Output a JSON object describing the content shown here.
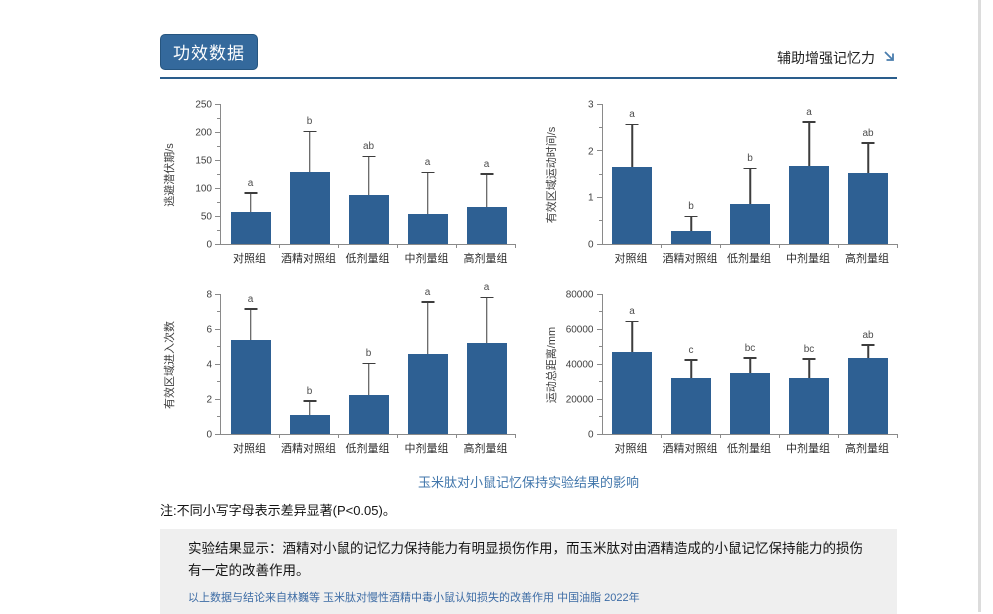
{
  "header": {
    "badge_label": "功效数据",
    "right_label": "辅助增强记忆力"
  },
  "chart_data": [
    {
      "type": "bar",
      "ylabel": "逃避潜伏期/s",
      "ylim": [
        0,
        250
      ],
      "yticks": [
        0,
        50,
        100,
        150,
        200,
        250
      ],
      "categories": [
        "对照组",
        "酒精对照组",
        "低剂量组",
        "中剂量组",
        "高剂量组"
      ],
      "values": [
        57,
        128,
        88,
        53,
        66
      ],
      "error_tops": [
        90,
        200,
        155,
        126,
        124
      ],
      "sig_letters": [
        "a",
        "b",
        "ab",
        "a",
        "a"
      ],
      "grid": false,
      "legend": "none"
    },
    {
      "type": "bar",
      "ylabel": "有效区域运动时间/s",
      "ylim": [
        0,
        3
      ],
      "yticks": [
        0,
        1,
        2,
        3
      ],
      "categories": [
        "对照组",
        "酒精对照组",
        "低剂量组",
        "中剂量组",
        "高剂量组"
      ],
      "values": [
        1.65,
        0.28,
        0.85,
        1.68,
        1.52
      ],
      "error_tops": [
        2.55,
        0.57,
        1.6,
        2.6,
        2.15
      ],
      "sig_letters": [
        "a",
        "b",
        "b",
        "a",
        "ab"
      ],
      "grid": false,
      "legend": "none"
    },
    {
      "type": "bar",
      "ylabel": "有效区域进入次数",
      "ylim": [
        0,
        8
      ],
      "yticks": [
        0,
        2,
        4,
        6,
        8
      ],
      "categories": [
        "对照组",
        "酒精对照组",
        "低剂量组",
        "中剂量组",
        "高剂量组"
      ],
      "values": [
        5.4,
        1.1,
        2.25,
        4.6,
        5.2
      ],
      "error_tops": [
        7.1,
        1.85,
        4.0,
        7.5,
        7.75
      ],
      "sig_letters": [
        "a",
        "b",
        "b",
        "a",
        "a"
      ],
      "grid": false,
      "legend": "none"
    },
    {
      "type": "bar",
      "ylabel": "运动总距离/mm",
      "ylim": [
        0,
        80000
      ],
      "yticks": [
        0,
        20000,
        40000,
        60000,
        80000
      ],
      "categories": [
        "对照组",
        "酒精对照组",
        "低剂量组",
        "中剂量组",
        "高剂量组"
      ],
      "values": [
        47000,
        32000,
        35000,
        32000,
        43500
      ],
      "error_tops": [
        64000,
        42000,
        43000,
        42500,
        50500
      ],
      "sig_letters": [
        "a",
        "c",
        "bc",
        "bc",
        "ab"
      ],
      "grid": false,
      "legend": "none"
    }
  ],
  "caption": "玉米肽对小鼠记忆保持实验结果的影响",
  "note": "注:不同小写字母表示差异显著(P<0.05)。",
  "result_box": {
    "text": "实验结果显示：酒精对小鼠的记忆力保持能力有明显损伤作用，而玉米肽对由酒精造成的小鼠记忆保持能力的损伤有一定的改善作用。",
    "citation": "以上数据与结论来自林巍等 玉米肽对慢性酒精中毒小鼠认知损失的改善作用 中国油脂 2022年"
  },
  "colors": {
    "bar": "#2e6093",
    "error": "#3d3d3d",
    "axis": "#8a8a8a",
    "accent": "#34699c",
    "rule": "#2a5d8c",
    "caption": "#4176ab",
    "citation": "#3d6ca5",
    "box_bg": "#efefef",
    "arrow": "#4a7dad"
  }
}
